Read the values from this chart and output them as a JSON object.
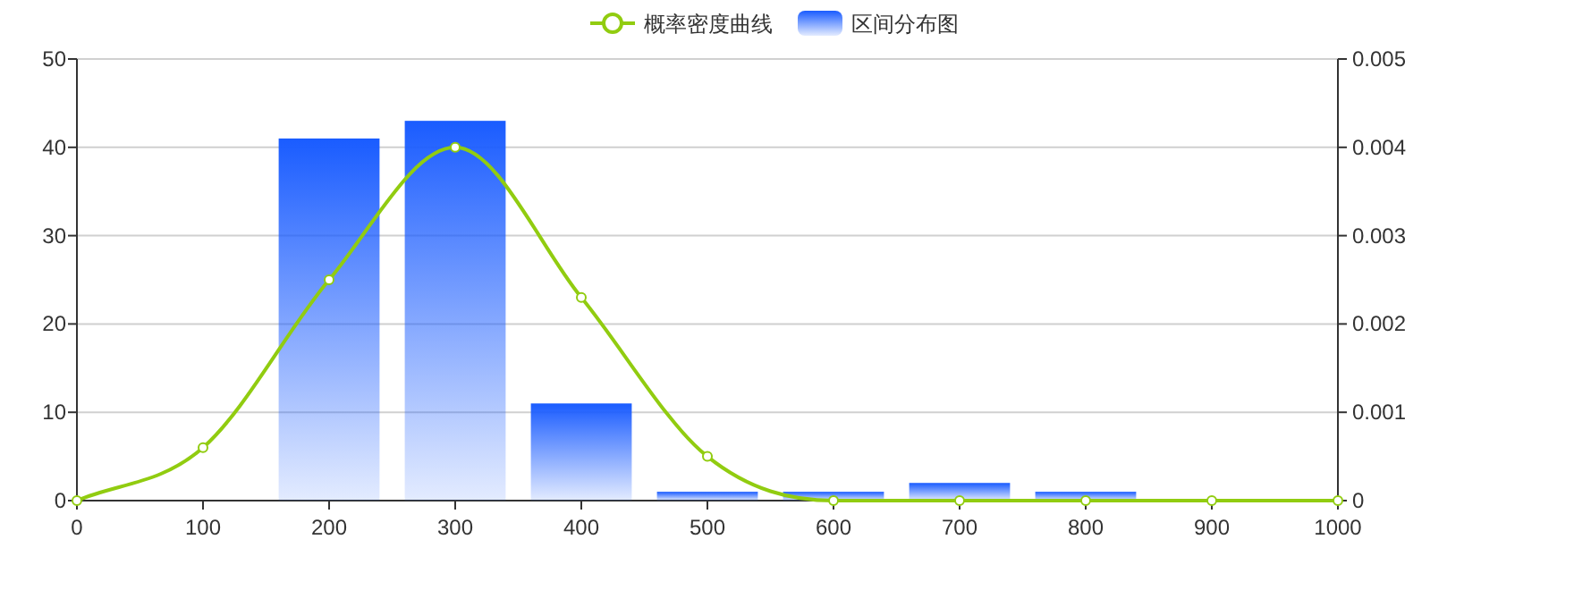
{
  "chart_data": {
    "type": "bar",
    "xlim": [
      0,
      1000
    ],
    "xticks": [
      0,
      100,
      200,
      300,
      400,
      500,
      600,
      700,
      800,
      900,
      1000
    ],
    "ylim": [
      0,
      50
    ],
    "yticks": [
      0,
      10,
      20,
      30,
      40,
      50
    ],
    "y2lim": [
      0,
      0.005
    ],
    "y2ticks": [
      0,
      0.001,
      0.002,
      0.003,
      0.004,
      0.005
    ],
    "grid": "y",
    "legend": "top",
    "marker": "circle",
    "series": [
      {
        "name": "概率密度曲线",
        "type": "line",
        "axis": "y2",
        "color": "#91cc10",
        "x": [
          0,
          100,
          200,
          300,
          400,
          500,
          600,
          700,
          800,
          900,
          1000
        ],
        "values": [
          0,
          0.0006,
          0.0025,
          0.004,
          0.0023,
          0.0005,
          0,
          0,
          0,
          0,
          0
        ]
      },
      {
        "name": "区间分布图",
        "color": "#1a5cff",
        "x": [
          200,
          300,
          400,
          500,
          600,
          700,
          800
        ],
        "values": [
          41,
          43,
          11,
          1,
          1,
          2,
          1
        ]
      }
    ]
  }
}
